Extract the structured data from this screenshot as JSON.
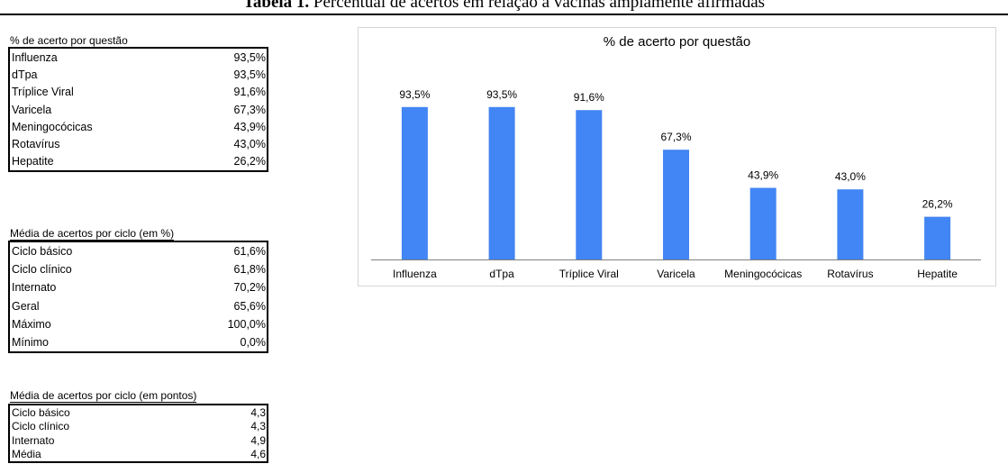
{
  "caption": {
    "label": "Tabela 1.",
    "text": "Percentual de acertos em relação a vacinas amplamente afirmadas"
  },
  "table1": {
    "title": "% de acerto por questão",
    "rows": [
      {
        "label": "Influenza",
        "value": "93,5%"
      },
      {
        "label": "dTpa",
        "value": "93,5%"
      },
      {
        "label": "Tríplice Viral",
        "value": "91,6%"
      },
      {
        "label": "Varicela",
        "value": "67,3%"
      },
      {
        "label": "Meningocócicas",
        "value": "43,9%"
      },
      {
        "label": "Rotavírus",
        "value": "43,0%"
      },
      {
        "label": "Hepatite",
        "value": "26,2%"
      }
    ]
  },
  "table2": {
    "title": "Média de acertos por ciclo (em %)",
    "rows": [
      {
        "label": "Ciclo básico",
        "value": "61,6%"
      },
      {
        "label": "Ciclo clínico",
        "value": "61,8%"
      },
      {
        "label": "Internato",
        "value": "70,2%"
      },
      {
        "label": "Geral",
        "value": "65,6%"
      },
      {
        "label": "Máximo",
        "value": "100,0%"
      },
      {
        "label": "Mínimo",
        "value": "0,0%"
      }
    ]
  },
  "table3": {
    "title": "Média de acertos por ciclo (em pontos)",
    "rows": [
      {
        "label": "Ciclo básico",
        "value": "4,3"
      },
      {
        "label": "Ciclo clínico",
        "value": "4,3"
      },
      {
        "label": "Internato",
        "value": "4,9"
      },
      {
        "label": "Média",
        "value": "4,6"
      }
    ]
  },
  "chart_data": {
    "type": "bar",
    "title": "% de acerto por questão",
    "categories": [
      "Influenza",
      "dTpa",
      "Tríplice Viral",
      "Varicela",
      "Meningocócicas",
      "Rotavírus",
      "Hepatite"
    ],
    "values": [
      93.5,
      93.5,
      91.6,
      67.3,
      43.9,
      43.0,
      26.2
    ],
    "data_labels": [
      "93,5%",
      "93,5%",
      "91,6%",
      "67,3%",
      "43,9%",
      "43,0%",
      "26,2%"
    ],
    "ylim": [
      0,
      100
    ],
    "grid": false,
    "legend": "none",
    "bar_color": "#4285f4"
  }
}
